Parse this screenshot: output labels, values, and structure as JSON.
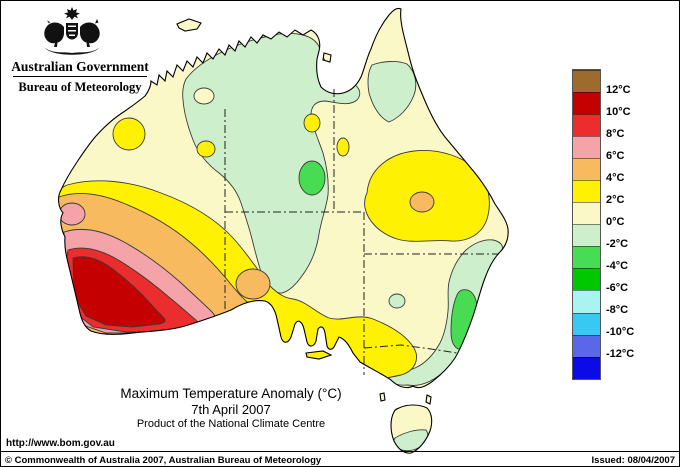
{
  "header": {
    "government": "Australian Government",
    "bureau": "Bureau of Meteorology"
  },
  "titles": {
    "title": "Maximum Temperature Anomaly (°C)",
    "date": "7th April 2007",
    "product": "Product of the National Climate Centre"
  },
  "legend": {
    "labels": [
      "12°C",
      "10°C",
      "8°C",
      "6°C",
      "4°C",
      "2°C",
      "0°C",
      "-2°C",
      "-4°C",
      "-6°C",
      "-8°C",
      "-10°C",
      "-12°C"
    ],
    "colors": [
      "#9C6B2D",
      "#C40000",
      "#EC2D2D",
      "#F4A3A8",
      "#F8BA5E",
      "#FFF101",
      "#FBF8C8",
      "#CDEFCB",
      "#47DC51",
      "#00C800",
      "#ABF3F0",
      "#38C9F2",
      "#5A67E8",
      "#0B0BE8"
    ]
  },
  "colors": {
    "sea": "#FFFFFF",
    "base_cream": "#FBF8C8",
    "pale_green": "#CDEFCB",
    "bright_green": "#47DC51",
    "yellow": "#FFF101",
    "orange": "#F8BA5E",
    "pink": "#F4A3A8",
    "red": "#EC2D2D",
    "dark_red": "#C40000"
  },
  "footer": {
    "url": "http://www.bom.gov.au",
    "copyright": "© Commonwealth of Australia 2007, Australian Bureau of Meteorology",
    "issued": "Issued: 08/04/2007"
  },
  "map_data": {
    "type": "contour-map",
    "region": "Australia",
    "variable": "Maximum Temperature Anomaly (°C)",
    "date": "7th April 2007",
    "scale_c": [
      12,
      10,
      8,
      6,
      4,
      2,
      0,
      -2,
      -4,
      -6,
      -8,
      -10,
      -12
    ],
    "features": [
      {
        "area": "Southwest WA inland core",
        "anomaly_c": "+10 to +12"
      },
      {
        "area": "Rings around SW WA core",
        "anomaly_c": "+4 to +10 (pink/orange/yellow bands)"
      },
      {
        "area": "Small pink oval on central west coast",
        "anomaly_c": "+6 to +8"
      },
      {
        "area": "Great Australian Bight coastal spot",
        "anomaly_c": "+4 to +6"
      },
      {
        "area": "Central Queensland blob",
        "anomaly_c": "+2 to +4 with +4 to +6 spot"
      },
      {
        "area": "SA gulfs and northwest Victoria",
        "anomaly_c": "+2 to +4"
      },
      {
        "area": "Kimberley and central small spots",
        "anomaly_c": "+2 to +4"
      },
      {
        "area": "Top End NT with tongue to northern SA",
        "anomaly_c": "-2 to 0"
      },
      {
        "area": "Central NT spot",
        "anomaly_c": "-2 to -4"
      },
      {
        "area": "Cape York inland",
        "anomaly_c": "-2 to 0"
      },
      {
        "area": "NSW coastal strip",
        "anomaly_c": "-2 to 0 with -2 to -4 patch"
      },
      {
        "area": "Southern Tasmania",
        "anomaly_c": "-2 to 0"
      },
      {
        "area": "Remaining interior",
        "anomaly_c": "0 to +2"
      }
    ]
  }
}
